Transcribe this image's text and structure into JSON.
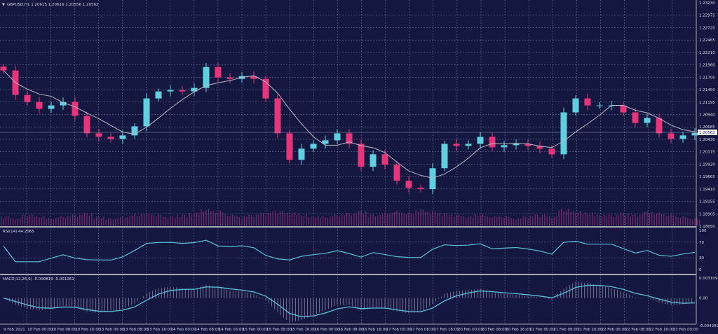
{
  "chart_title": "GBPUSD,H1  1.20615 1.20616 1.20556 1.20562",
  "rsi_label": "RSI(14) 44.2065",
  "macd_label": "MACD(12,26,9) -0.000819 -0.001061",
  "current_price_label": "1.20562",
  "colors": {
    "background": "#14173f",
    "bull": "#5ed0e0",
    "bear": "#e8347a",
    "ma": "#b8b8c8",
    "volume": "#7a2a6e",
    "indicator_line": "#5bc0d8",
    "macd_hist": "#9a93b8",
    "grid": "#7e84aa"
  },
  "chart_data": [
    {
      "type": "candlestick",
      "symbol": "GBPUSD",
      "timeframe": "H1",
      "ylim": [
        1.1865,
        1.2323
      ],
      "y_ticks": [
        "1.23230",
        "1.22975",
        "1.22720",
        "1.22465",
        "1.22210",
        "1.21960",
        "1.21705",
        "1.21450",
        "1.21195",
        "1.20940",
        "1.20685",
        "1.20430",
        "1.20175",
        "1.19920",
        "1.19665",
        "1.19410",
        "1.19155",
        "1.18905",
        "1.18650"
      ],
      "x_ticks": [
        "9 Feb 2021",
        "10 Feb 00:00",
        "10 Feb 08:00",
        "10 Feb 16:00",
        "13 Feb 00:00",
        "13 Feb 08:00",
        "13 Feb 16:00",
        "14 Feb 00:00",
        "14 Feb 08:00",
        "14 Feb 16:00",
        "15 Feb 00:00",
        "15 Feb 08:00",
        "15 Feb 16:00",
        "16 Feb 00:00",
        "16 Feb 08:00",
        "16 Feb 16:00",
        "17 Feb 00:00",
        "17 Feb 08:00",
        "17 Feb 16:00",
        "20 Feb 00:00",
        "20 Feb 08:00",
        "20 Feb 16:00",
        "21 Feb 00:00",
        "21 Feb 08:00",
        "21 Feb 16:00",
        "22 Feb 00:00",
        "22 Feb 08:00",
        "22 Feb 16:00",
        "23 Feb 00:00"
      ],
      "close": [
        1.21842,
        1.21341,
        1.21198,
        1.21055,
        1.21126,
        1.21198,
        1.20911,
        1.20554,
        1.20482,
        1.20439,
        1.20511,
        1.20697,
        1.21269,
        1.21412,
        1.21441,
        1.21412,
        1.21484,
        1.21913,
        1.21699,
        1.2167,
        1.21727,
        1.2167,
        1.21269,
        1.20554,
        1.2001,
        1.20239,
        1.20339,
        1.2041,
        1.20554,
        1.20339,
        1.19867,
        1.20124,
        1.1991,
        1.1958,
        1.19437,
        1.19409,
        1.19838,
        1.20339,
        1.20296,
        1.20339,
        1.20482,
        1.20267,
        1.2031,
        1.20339,
        1.20296,
        1.20239,
        1.20124,
        1.20983,
        1.21269,
        1.21126,
        1.21126,
        1.21126,
        1.20983,
        1.20768,
        1.20868,
        1.20554,
        1.20439,
        1.20511,
        1.20562
      ],
      "volume": [
        5,
        4,
        6,
        5,
        4,
        5,
        6,
        7,
        5,
        4,
        5,
        6,
        7,
        6,
        5,
        6,
        7,
        9,
        8,
        6,
        5,
        6,
        7,
        8,
        7,
        6,
        5,
        5,
        6,
        7,
        8,
        6,
        7,
        8,
        7,
        9,
        8,
        7,
        6,
        5,
        6,
        5,
        5,
        4,
        5,
        6,
        5,
        9,
        8,
        7,
        6,
        6,
        7,
        6,
        8,
        7,
        6,
        5,
        4
      ],
      "moving_average": "sma",
      "indicators": [
        "RSI(14)",
        "MACD(12,26,9)"
      ],
      "rsi_ticks": [
        "100",
        "70",
        "30",
        "0"
      ],
      "macd_ticks": [
        "0.003109",
        "0.00",
        "-0.004282"
      ],
      "macd_range": [
        -0.004282,
        0.003109
      ]
    }
  ]
}
